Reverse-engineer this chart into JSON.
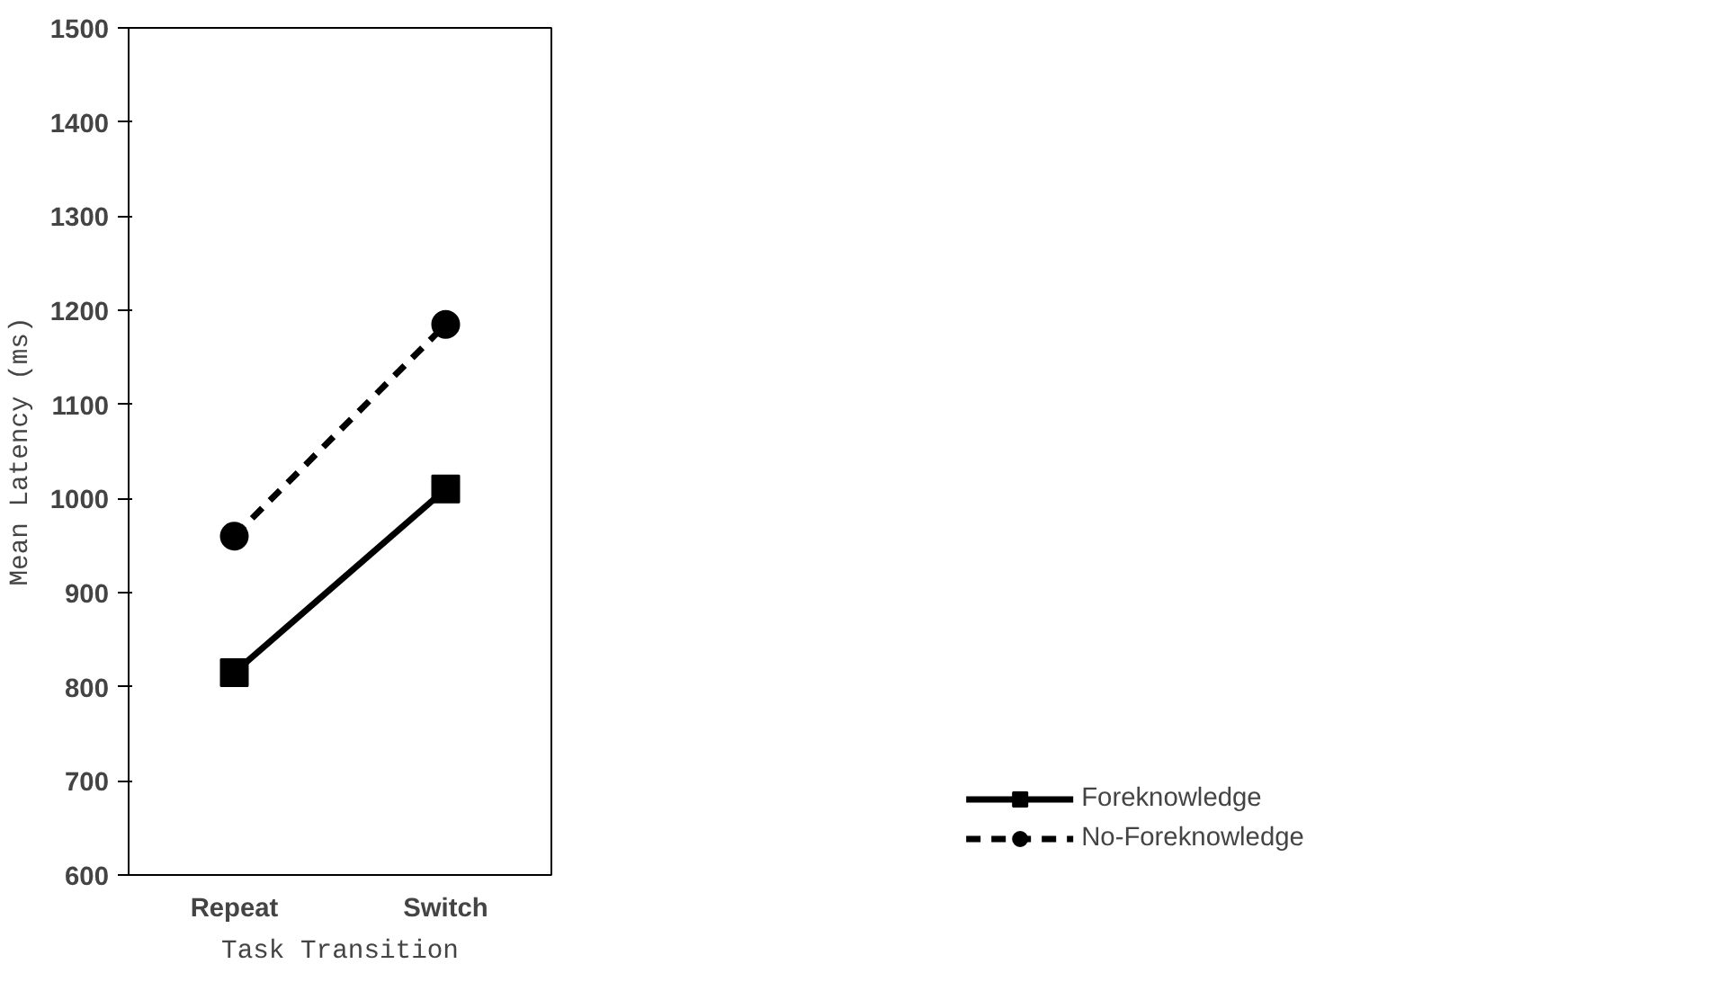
{
  "chart_data": {
    "type": "line",
    "xlabel": "Task Transition",
    "ylabel": "Mean Latency (ms)",
    "categories": [
      "Repeat",
      "Switch"
    ],
    "series": [
      {
        "name": "Foreknowledge",
        "color": "#000000",
        "values": [
          815,
          1010
        ],
        "marker": "square",
        "line_style": "solid"
      },
      {
        "name": "No-Foreknowledge",
        "color": "#000000",
        "values": [
          960,
          1185
        ],
        "marker": "circle",
        "line_style": "dashed"
      }
    ],
    "ylim": [
      600,
      1500
    ],
    "yticks": [
      600,
      700,
      800,
      900,
      1000,
      1100,
      1200,
      1300,
      1400,
      1500
    ],
    "grid": false,
    "legend": "bottom right"
  }
}
